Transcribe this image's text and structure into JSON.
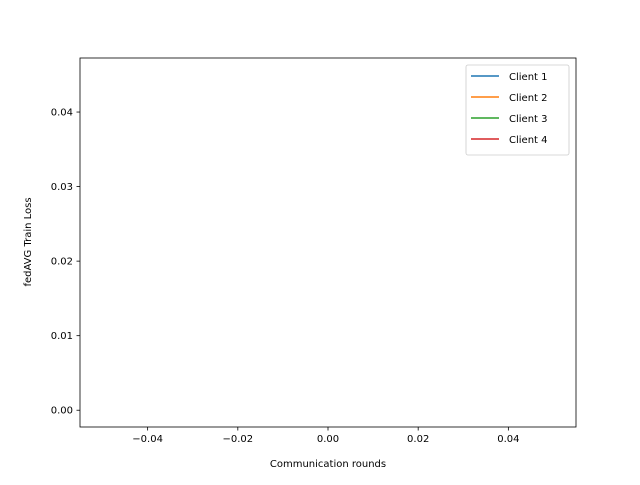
{
  "chart_data": {
    "type": "line",
    "title": "",
    "xlabel": "Communication rounds",
    "ylabel": "fedAVG Train Loss",
    "xlim": [
      -0.055,
      0.055
    ],
    "ylim": [
      -0.00225,
      0.04725
    ],
    "xticks": [
      -0.04,
      -0.02,
      0.0,
      0.02,
      0.04
    ],
    "xtick_labels": [
      "−0.04",
      "−0.02",
      "0.00",
      "0.02",
      "0.04"
    ],
    "yticks": [
      0.0,
      0.01,
      0.02,
      0.03,
      0.04
    ],
    "ytick_labels": [
      "0.00",
      "0.01",
      "0.02",
      "0.03",
      "0.04"
    ],
    "grid": false,
    "legend_position": "top-right",
    "series": [
      {
        "name": "Client 1",
        "color": "#1f77b4",
        "x": [],
        "y": []
      },
      {
        "name": "Client 2",
        "color": "#ff7f0e",
        "x": [],
        "y": []
      },
      {
        "name": "Client 3",
        "color": "#2ca02c",
        "x": [],
        "y": []
      },
      {
        "name": "Client 4",
        "color": "#d62728",
        "x": [],
        "y": []
      }
    ]
  }
}
